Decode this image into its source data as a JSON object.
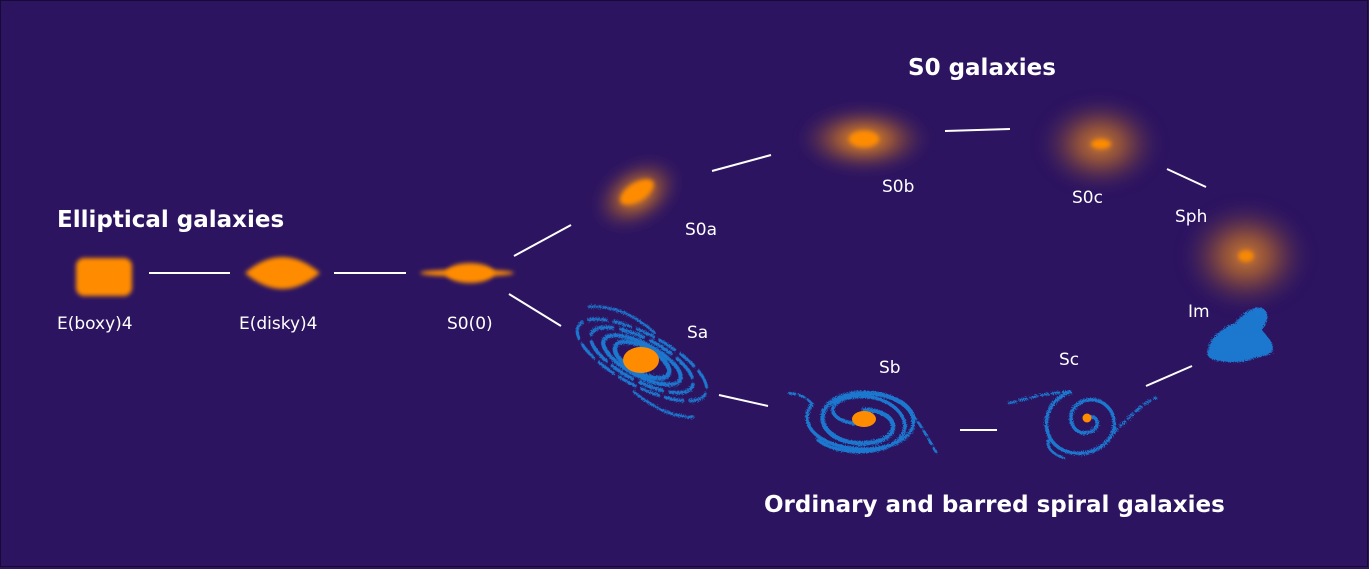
{
  "groups": {
    "elliptical": "Elliptical galaxies",
    "s0": "S0 galaxies",
    "spiral": "Ordinary and barred spiral galaxies"
  },
  "nodes": {
    "e_boxy": "E(boxy)4",
    "e_disky": "E(disky)4",
    "s0_0": "S0(0)",
    "s0a": "S0a",
    "s0b": "S0b",
    "s0c": "S0c",
    "sph": "Sph",
    "sa": "Sa",
    "sb": "Sb",
    "sc": "Sc",
    "im": "Im"
  },
  "colors": {
    "background": "#2c1461",
    "frame": "#160a36",
    "galaxy_core": "#ff8c00",
    "galaxy_glow": "#ff9a1f",
    "spiral_arms": "#1f78cf",
    "connectors": "#ffffff",
    "text": "#ffffff"
  }
}
